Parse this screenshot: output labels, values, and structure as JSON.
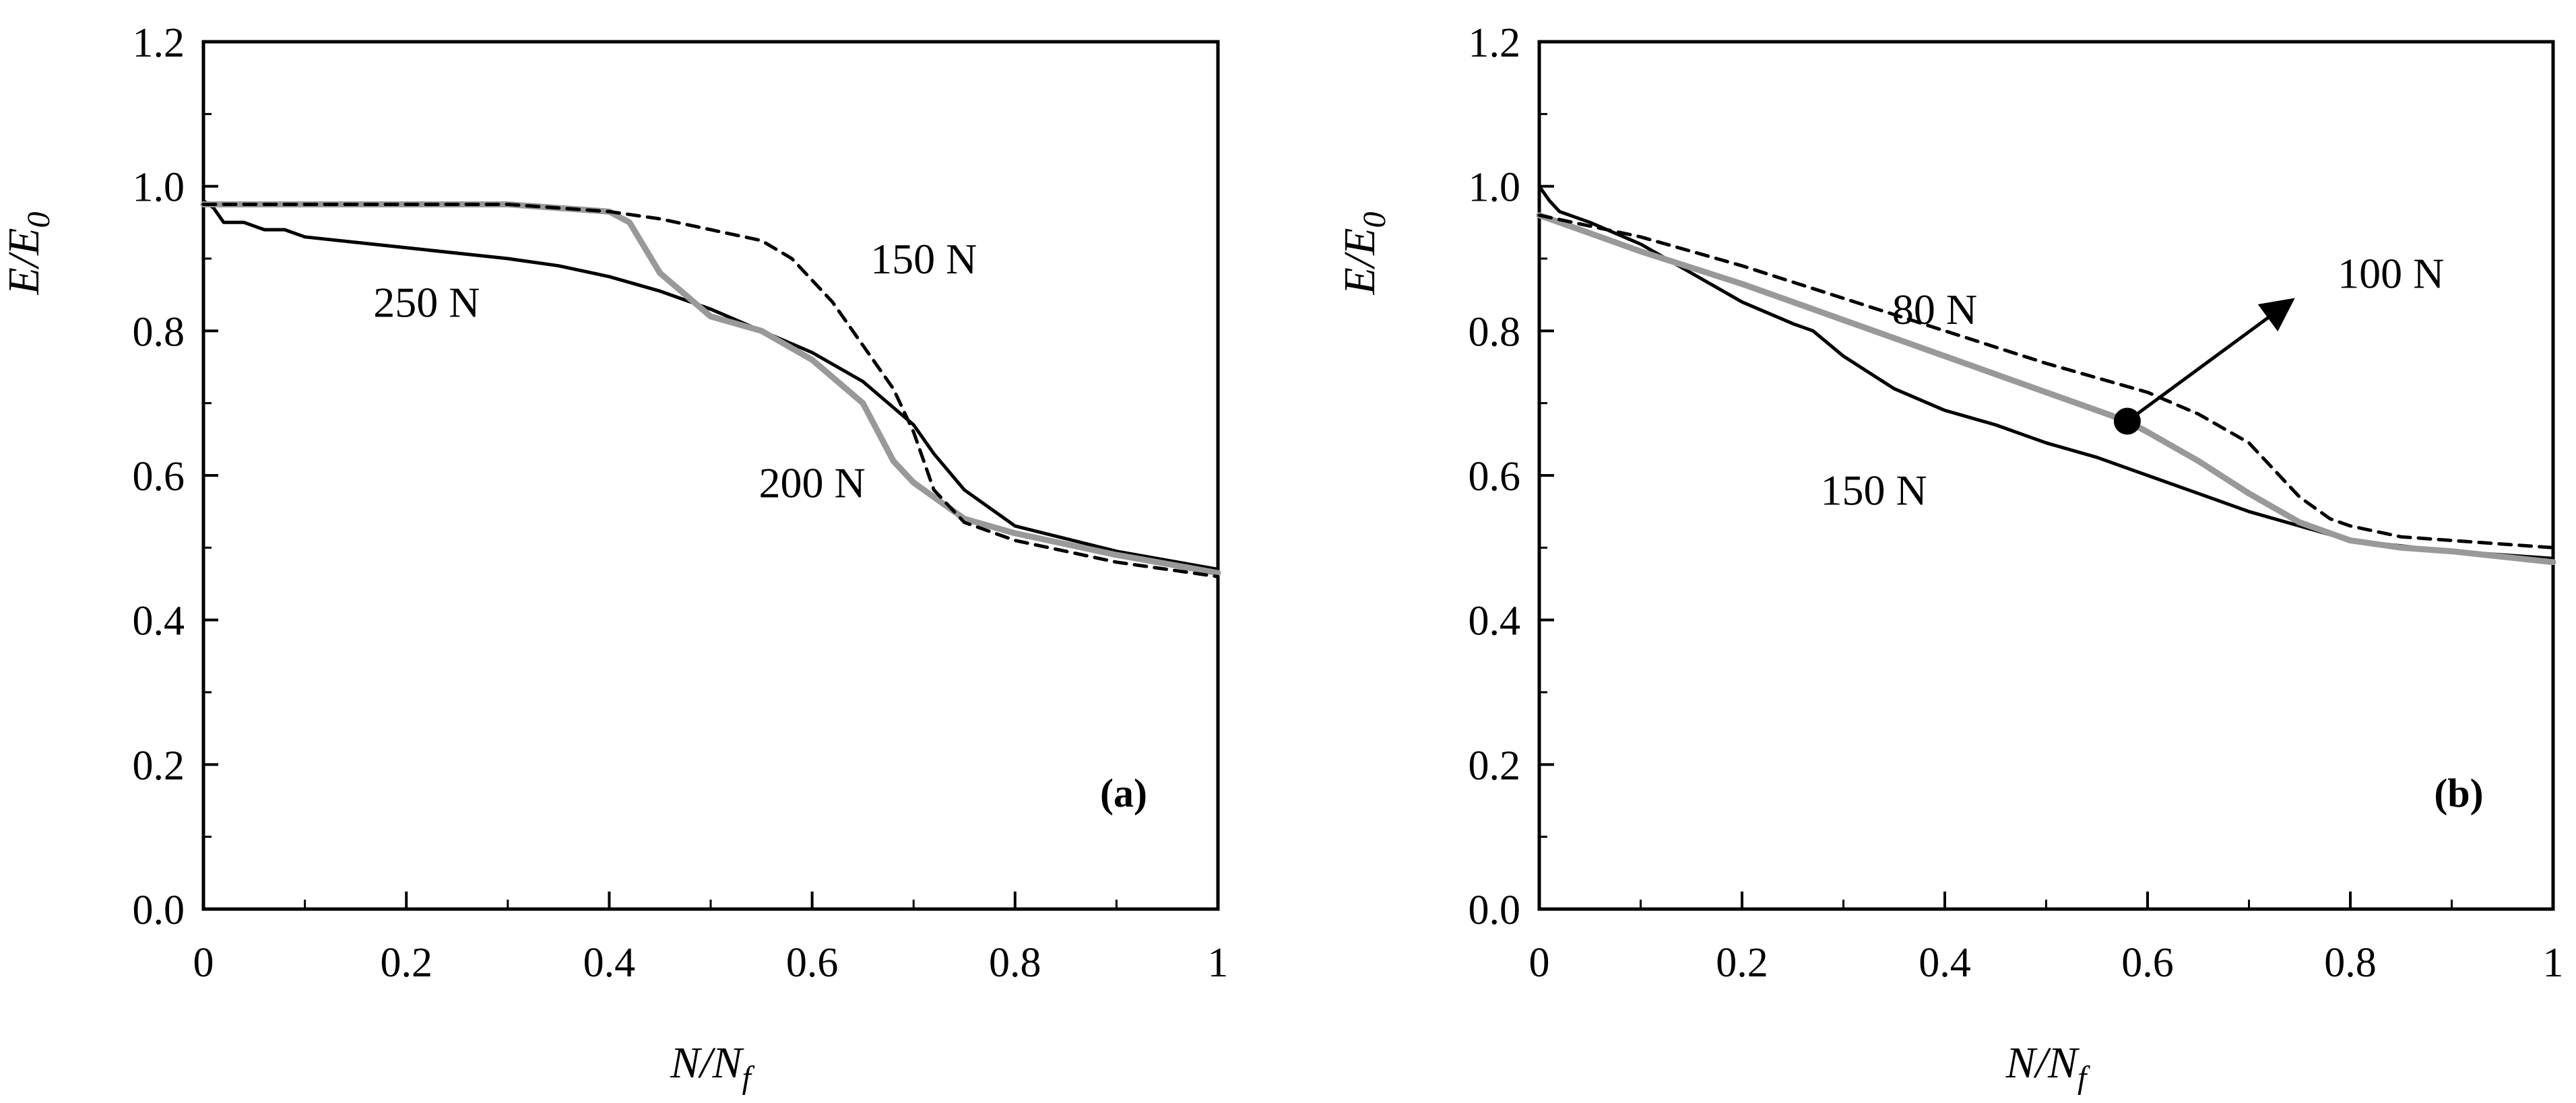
{
  "chart_data": [
    {
      "type": "line",
      "panel_label": "(a)",
      "xlabel": {
        "main": "N",
        "sep": "/",
        "base": "N",
        "sub": "f"
      },
      "ylabel": {
        "main": "E",
        "sep": "/",
        "base": "E",
        "sub": "0"
      },
      "xlim": [
        0,
        1
      ],
      "ylim": [
        0,
        1.2
      ],
      "xticks": [
        0,
        0.2,
        0.4,
        0.6,
        0.8,
        1
      ],
      "xtick_labels": [
        "0",
        "0.2",
        "0.4",
        "0.6",
        "0.8",
        "1"
      ],
      "yticks": [
        0,
        0.2,
        0.4,
        0.6,
        0.8,
        1.0,
        1.2
      ],
      "ytick_labels": [
        "0.0",
        "0.2",
        "0.4",
        "0.6",
        "0.8",
        "1.0",
        "1.2"
      ],
      "grid": false,
      "series": [
        {
          "name": "250 N",
          "color": "#000000",
          "style": "solid",
          "x": [
            0,
            0.01,
            0.02,
            0.04,
            0.06,
            0.08,
            0.1,
            0.2,
            0.3,
            0.35,
            0.4,
            0.45,
            0.5,
            0.55,
            0.6,
            0.65,
            0.7,
            0.72,
            0.75,
            0.8,
            0.9,
            1.0
          ],
          "y": [
            0.98,
            0.97,
            0.95,
            0.95,
            0.94,
            0.94,
            0.93,
            0.915,
            0.9,
            0.89,
            0.875,
            0.855,
            0.83,
            0.8,
            0.77,
            0.73,
            0.67,
            0.63,
            0.58,
            0.53,
            0.495,
            0.47
          ]
        },
        {
          "name": "200 N",
          "color": "#999999",
          "style": "solid",
          "x": [
            0,
            0.1,
            0.2,
            0.3,
            0.35,
            0.4,
            0.42,
            0.45,
            0.5,
            0.55,
            0.6,
            0.65,
            0.68,
            0.7,
            0.75,
            0.8,
            0.9,
            1.0
          ],
          "y": [
            0.975,
            0.975,
            0.975,
            0.975,
            0.97,
            0.965,
            0.95,
            0.88,
            0.82,
            0.8,
            0.76,
            0.7,
            0.62,
            0.59,
            0.54,
            0.52,
            0.49,
            0.465
          ]
        },
        {
          "name": "150 N",
          "color": "#000000",
          "style": "dashed",
          "x": [
            0,
            0.1,
            0.2,
            0.3,
            0.4,
            0.45,
            0.5,
            0.55,
            0.58,
            0.62,
            0.66,
            0.68,
            0.7,
            0.72,
            0.75,
            0.8,
            0.9,
            1.0
          ],
          "y": [
            0.975,
            0.975,
            0.975,
            0.975,
            0.965,
            0.955,
            0.94,
            0.925,
            0.9,
            0.84,
            0.76,
            0.72,
            0.66,
            0.58,
            0.535,
            0.51,
            0.48,
            0.46
          ]
        }
      ],
      "annotations": [
        {
          "text": "250 N",
          "x": 0.22,
          "y": 0.84
        },
        {
          "text": "150 N",
          "x": 0.71,
          "y": 0.9
        },
        {
          "text": "200 N",
          "x": 0.6,
          "y": 0.59
        }
      ]
    },
    {
      "type": "line",
      "panel_label": "(b)",
      "xlabel": {
        "main": "N",
        "sep": "/",
        "base": "N",
        "sub": "f"
      },
      "ylabel": {
        "main": "E",
        "sep": "/",
        "base": "E",
        "sub": "0"
      },
      "xlim": [
        0,
        1
      ],
      "ylim": [
        0,
        1.2
      ],
      "xticks": [
        0,
        0.2,
        0.4,
        0.6,
        0.8,
        1
      ],
      "xtick_labels": [
        "0",
        "0.2",
        "0.4",
        "0.6",
        "0.8",
        "1"
      ],
      "yticks": [
        0,
        0.2,
        0.4,
        0.6,
        0.8,
        1.0,
        1.2
      ],
      "ytick_labels": [
        "0.0",
        "0.2",
        "0.4",
        "0.6",
        "0.8",
        "1.0",
        "1.2"
      ],
      "grid": false,
      "series": [
        {
          "name": "150 N",
          "color": "#000000",
          "style": "solid",
          "x": [
            0,
            0.01,
            0.02,
            0.05,
            0.1,
            0.15,
            0.2,
            0.25,
            0.27,
            0.3,
            0.35,
            0.4,
            0.45,
            0.5,
            0.55,
            0.6,
            0.65,
            0.7,
            0.75,
            0.8,
            0.9,
            1.0
          ],
          "y": [
            1.0,
            0.98,
            0.965,
            0.95,
            0.92,
            0.88,
            0.84,
            0.81,
            0.8,
            0.765,
            0.72,
            0.69,
            0.67,
            0.645,
            0.625,
            0.6,
            0.575,
            0.55,
            0.53,
            0.51,
            0.495,
            0.485
          ]
        },
        {
          "name": "100 N",
          "color": "#999999",
          "style": "solid",
          "x": [
            0,
            0.05,
            0.1,
            0.2,
            0.3,
            0.4,
            0.5,
            0.55,
            0.58,
            0.6,
            0.65,
            0.7,
            0.75,
            0.8,
            0.85,
            0.9,
            1.0
          ],
          "y": [
            0.96,
            0.935,
            0.91,
            0.865,
            0.815,
            0.765,
            0.715,
            0.69,
            0.675,
            0.66,
            0.62,
            0.575,
            0.535,
            0.51,
            0.5,
            0.495,
            0.48
          ]
        },
        {
          "name": "80 N",
          "color": "#000000",
          "style": "dashed",
          "x": [
            0,
            0.1,
            0.2,
            0.3,
            0.4,
            0.5,
            0.6,
            0.65,
            0.7,
            0.73,
            0.75,
            0.78,
            0.8,
            0.85,
            0.9,
            1.0
          ],
          "y": [
            0.96,
            0.93,
            0.89,
            0.845,
            0.8,
            0.755,
            0.715,
            0.685,
            0.645,
            0.6,
            0.57,
            0.54,
            0.53,
            0.515,
            0.51,
            0.5
          ]
        }
      ],
      "annotations": [
        {
          "text": "80 N",
          "x": 0.39,
          "y": 0.83
        },
        {
          "text": "100 N",
          "x": 0.84,
          "y": 0.88
        },
        {
          "text": "150 N",
          "x": 0.33,
          "y": 0.58
        }
      ],
      "marker": {
        "x": 0.58,
        "y": 0.675
      },
      "arrow": {
        "from": [
          0.58,
          0.675
        ],
        "to": [
          0.74,
          0.84
        ]
      }
    }
  ]
}
